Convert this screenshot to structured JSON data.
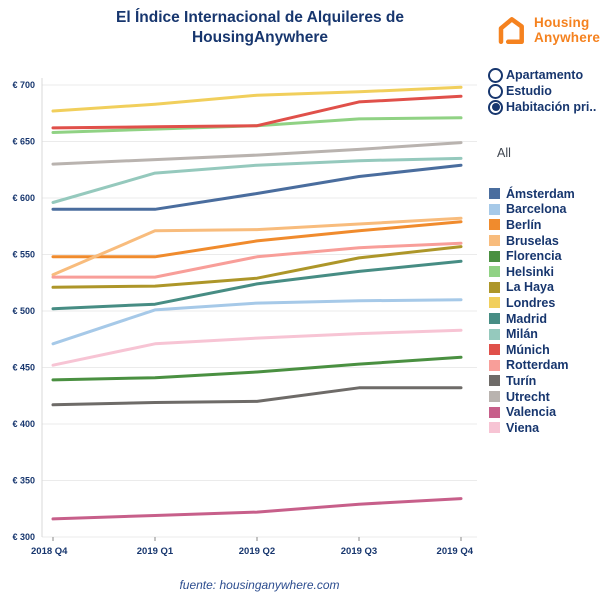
{
  "title": "El Índice Internacional de Alquileres de HousingAnywhere",
  "logo": {
    "line1": "Housing",
    "line2": "Anywhere",
    "color": "#f5821f"
  },
  "filters": {
    "radios": [
      {
        "label": "Apartamento",
        "selected": false
      },
      {
        "label": "Estudio",
        "selected": false
      },
      {
        "label": "Habitación pri..",
        "selected": true
      }
    ],
    "scope_label": "All"
  },
  "footer": "fuente: housinganywhere.com",
  "colors": {
    "navy_text": "#17366e",
    "grid_line": "#ebebeb",
    "axis_line": "#d8d8d8",
    "tick_mark": "#8a8a8a",
    "logo_orange": "#f5821f"
  },
  "chart_data": {
    "type": "line",
    "title": "El Índice Internacional de Alquileres de HousingAnywhere",
    "x": [
      "2018 Q4",
      "2019 Q1",
      "2019 Q2",
      "2019 Q3",
      "2019 Q4"
    ],
    "currency_prefix": "€",
    "ylim": [
      300,
      700
    ],
    "yticks": [
      300,
      350,
      400,
      450,
      500,
      550,
      600,
      650,
      700
    ],
    "grid": "horizontal",
    "legend_position": "right",
    "series": [
      {
        "name": "Ámsterdam",
        "color": "#4a6d9e",
        "values": [
          590,
          590,
          604,
          619,
          629
        ]
      },
      {
        "name": "Barcelona",
        "color": "#a6c9e8",
        "values": [
          471,
          501,
          507,
          509,
          510
        ]
      },
      {
        "name": "Berlín",
        "color": "#f08b2d",
        "values": [
          548,
          548,
          562,
          571,
          579
        ]
      },
      {
        "name": "Bruselas",
        "color": "#f8bc7d",
        "values": [
          532,
          571,
          572,
          577,
          582
        ]
      },
      {
        "name": "Florencia",
        "color": "#4a9041",
        "values": [
          439,
          441,
          446,
          453,
          459
        ]
      },
      {
        "name": "Helsinki",
        "color": "#90d284",
        "values": [
          658,
          661,
          664,
          670,
          671
        ]
      },
      {
        "name": "La Haya",
        "color": "#ad9629",
        "values": [
          521,
          522,
          529,
          547,
          557
        ]
      },
      {
        "name": "Londres",
        "color": "#f1cf5c",
        "values": [
          677,
          683,
          691,
          694,
          698
        ]
      },
      {
        "name": "Madrid",
        "color": "#478d84",
        "values": [
          502,
          506,
          524,
          535,
          544
        ]
      },
      {
        "name": "Milán",
        "color": "#95c9bd",
        "values": [
          596,
          622,
          629,
          633,
          635
        ]
      },
      {
        "name": "Múnich",
        "color": "#e0504a",
        "values": [
          662,
          663,
          664,
          685,
          690
        ]
      },
      {
        "name": "Rotterdam",
        "color": "#f89e99",
        "values": [
          530,
          530,
          548,
          556,
          560
        ]
      },
      {
        "name": "Turín",
        "color": "#6e6b68",
        "values": [
          417,
          419,
          420,
          432,
          432
        ]
      },
      {
        "name": "Utrecht",
        "color": "#b9b3af",
        "values": [
          630,
          634,
          638,
          643,
          649
        ]
      },
      {
        "name": "Valencia",
        "color": "#c75f8a",
        "values": [
          316,
          319,
          322,
          329,
          334
        ]
      },
      {
        "name": "Viena",
        "color": "#f7c4d4",
        "values": [
          452,
          471,
          476,
          480,
          483
        ]
      }
    ]
  }
}
